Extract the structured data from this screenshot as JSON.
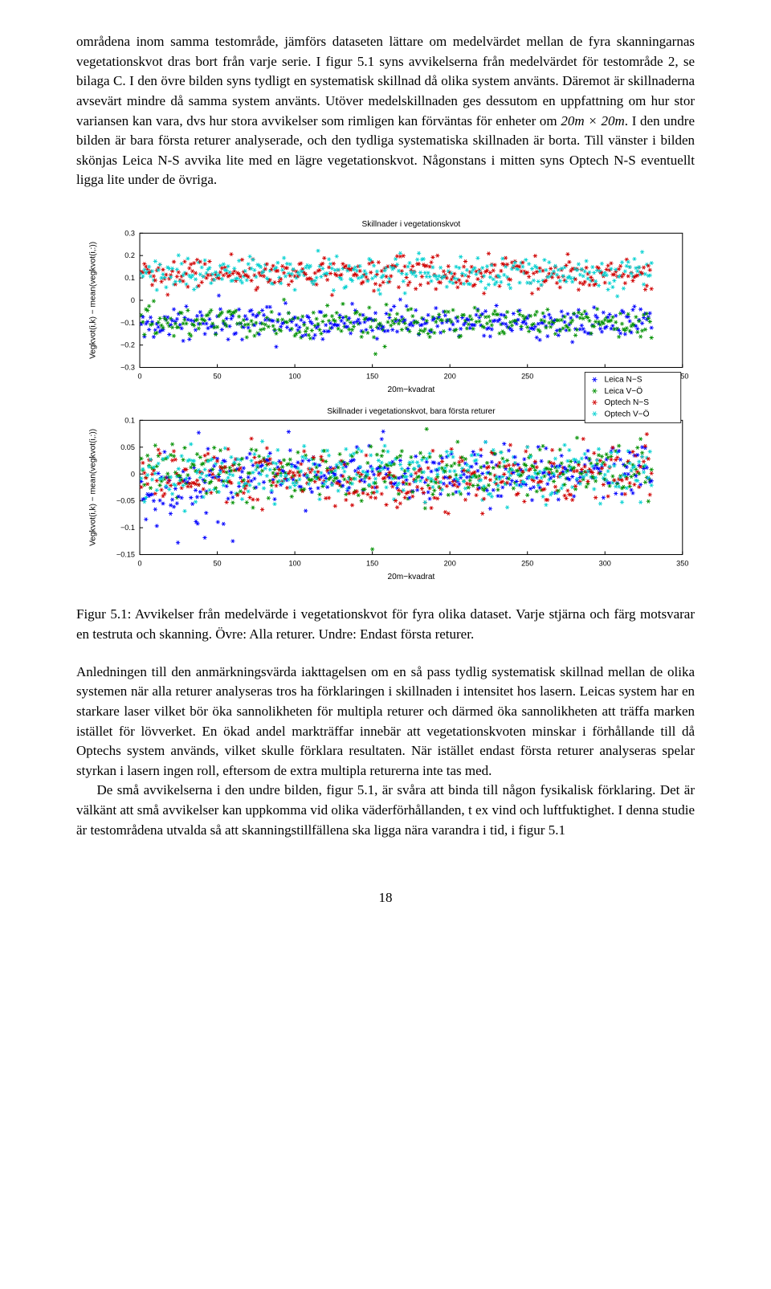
{
  "para1": "områdena inom samma testområde, jämförs dataseten lättare om medelvärdet mellan de fyra skanningarnas vegetationskvot dras bort från varje serie. I figur 5.1 syns avvikelserna från medelvärdet för testområde 2, se bilaga C. I den övre bilden syns tydligt en systematisk skillnad då olika system använts. Däremot är skillnaderna avsevärt mindre då samma system använts. Utöver medelskillnaden ges dessutom en uppfattning om hur stor variansen kan vara, dvs hur stora avvikelser som rimligen kan förväntas för enheter om ",
  "para1_math": "20m × 20m",
  "para1b": ". I den undre bilden är bara första returer analyserade, och den tydliga systematiska skillnaden är borta. Till vänster i bilden skönjas Leica N-S avvika lite med en lägre vegetationskvot. Någonstans i mitten syns Optech N-S eventuellt ligga lite under de övriga.",
  "caption_label": "Figur 5.1: ",
  "caption_text": "Avvikelser från medelvärde i vegetationskvot för fyra olika dataset. Varje stjärna och färg motsvarar en testruta och skanning. Övre: Alla returer. Undre: Endast första returer.",
  "para2": "Anledningen till den anmärkningsvärda iakttagelsen om en så pass tydlig systematisk skillnad mellan de olika systemen när alla returer analyseras tros ha förklaringen i skillnaden i intensitet hos lasern. Leicas system har en starkare laser vilket bör öka sannolikheten för multipla returer och därmed öka sannolikheten att träffa marken istället för lövverket. En ökad andel markträffar innebär att vegetationskvoten minskar i förhållande till då Optechs system används, vilket skulle förklara resultaten. När istället endast första returer analyseras spelar styrkan i lasern ingen roll, eftersom de extra multipla returerna inte tas med.",
  "para3": "De små avvikelserna i den undre bilden, figur 5.1, är svåra att binda till någon fysikalisk förklaring. Det är välkänt att små avvikelser kan uppkomma vid olika väderförhållanden, t ex vind och luftfuktighet. I denna studie är testområdena utvalda så att skanningstillfällena ska ligga nära varandra i tid, i figur 5.1",
  "page_num": "18",
  "chart_top": {
    "title": "Skillnader i vegetationskvot",
    "xlabel": "20m−kvadrat",
    "ylabel": "Vegkvot(i,k) − mean(vegkvot(i,:))",
    "xlim": [
      0,
      350
    ],
    "xtick_step": 50,
    "ylim": [
      -0.3,
      0.3
    ],
    "ytick_step": 0.1,
    "band_upper_center": 0.12,
    "band_lower_center": -0.1,
    "band_spread": 0.035,
    "title_fontsize": 10,
    "label_fontsize": 10,
    "tick_fontsize": 9
  },
  "chart_bottom": {
    "title": "Skillnader i vegetationskvot, bara första returer",
    "xlabel": "20m−kvadrat",
    "ylabel": "Vegkvot(i,k) − mean(vegkvot(i,:))",
    "xlim": [
      0,
      350
    ],
    "xtick_step": 50,
    "ylim": [
      -0.15,
      0.1
    ],
    "ytick_step": 0.05,
    "band_center": 0.0,
    "band_spread": 0.025,
    "title_fontsize": 10,
    "label_fontsize": 10,
    "tick_fontsize": 9
  },
  "legend": {
    "items": [
      {
        "label": "Leica N−S",
        "color": "#0000ff"
      },
      {
        "label": "Leica V−Ö",
        "color": "#009000"
      },
      {
        "label": "Optech N−S",
        "color": "#d00000"
      },
      {
        "label": "Optech V−Ö",
        "color": "#00d0d0"
      }
    ]
  },
  "colors": {
    "axis": "#000000",
    "box": "#000000",
    "tick": "#000000",
    "bg": "#ffffff"
  }
}
